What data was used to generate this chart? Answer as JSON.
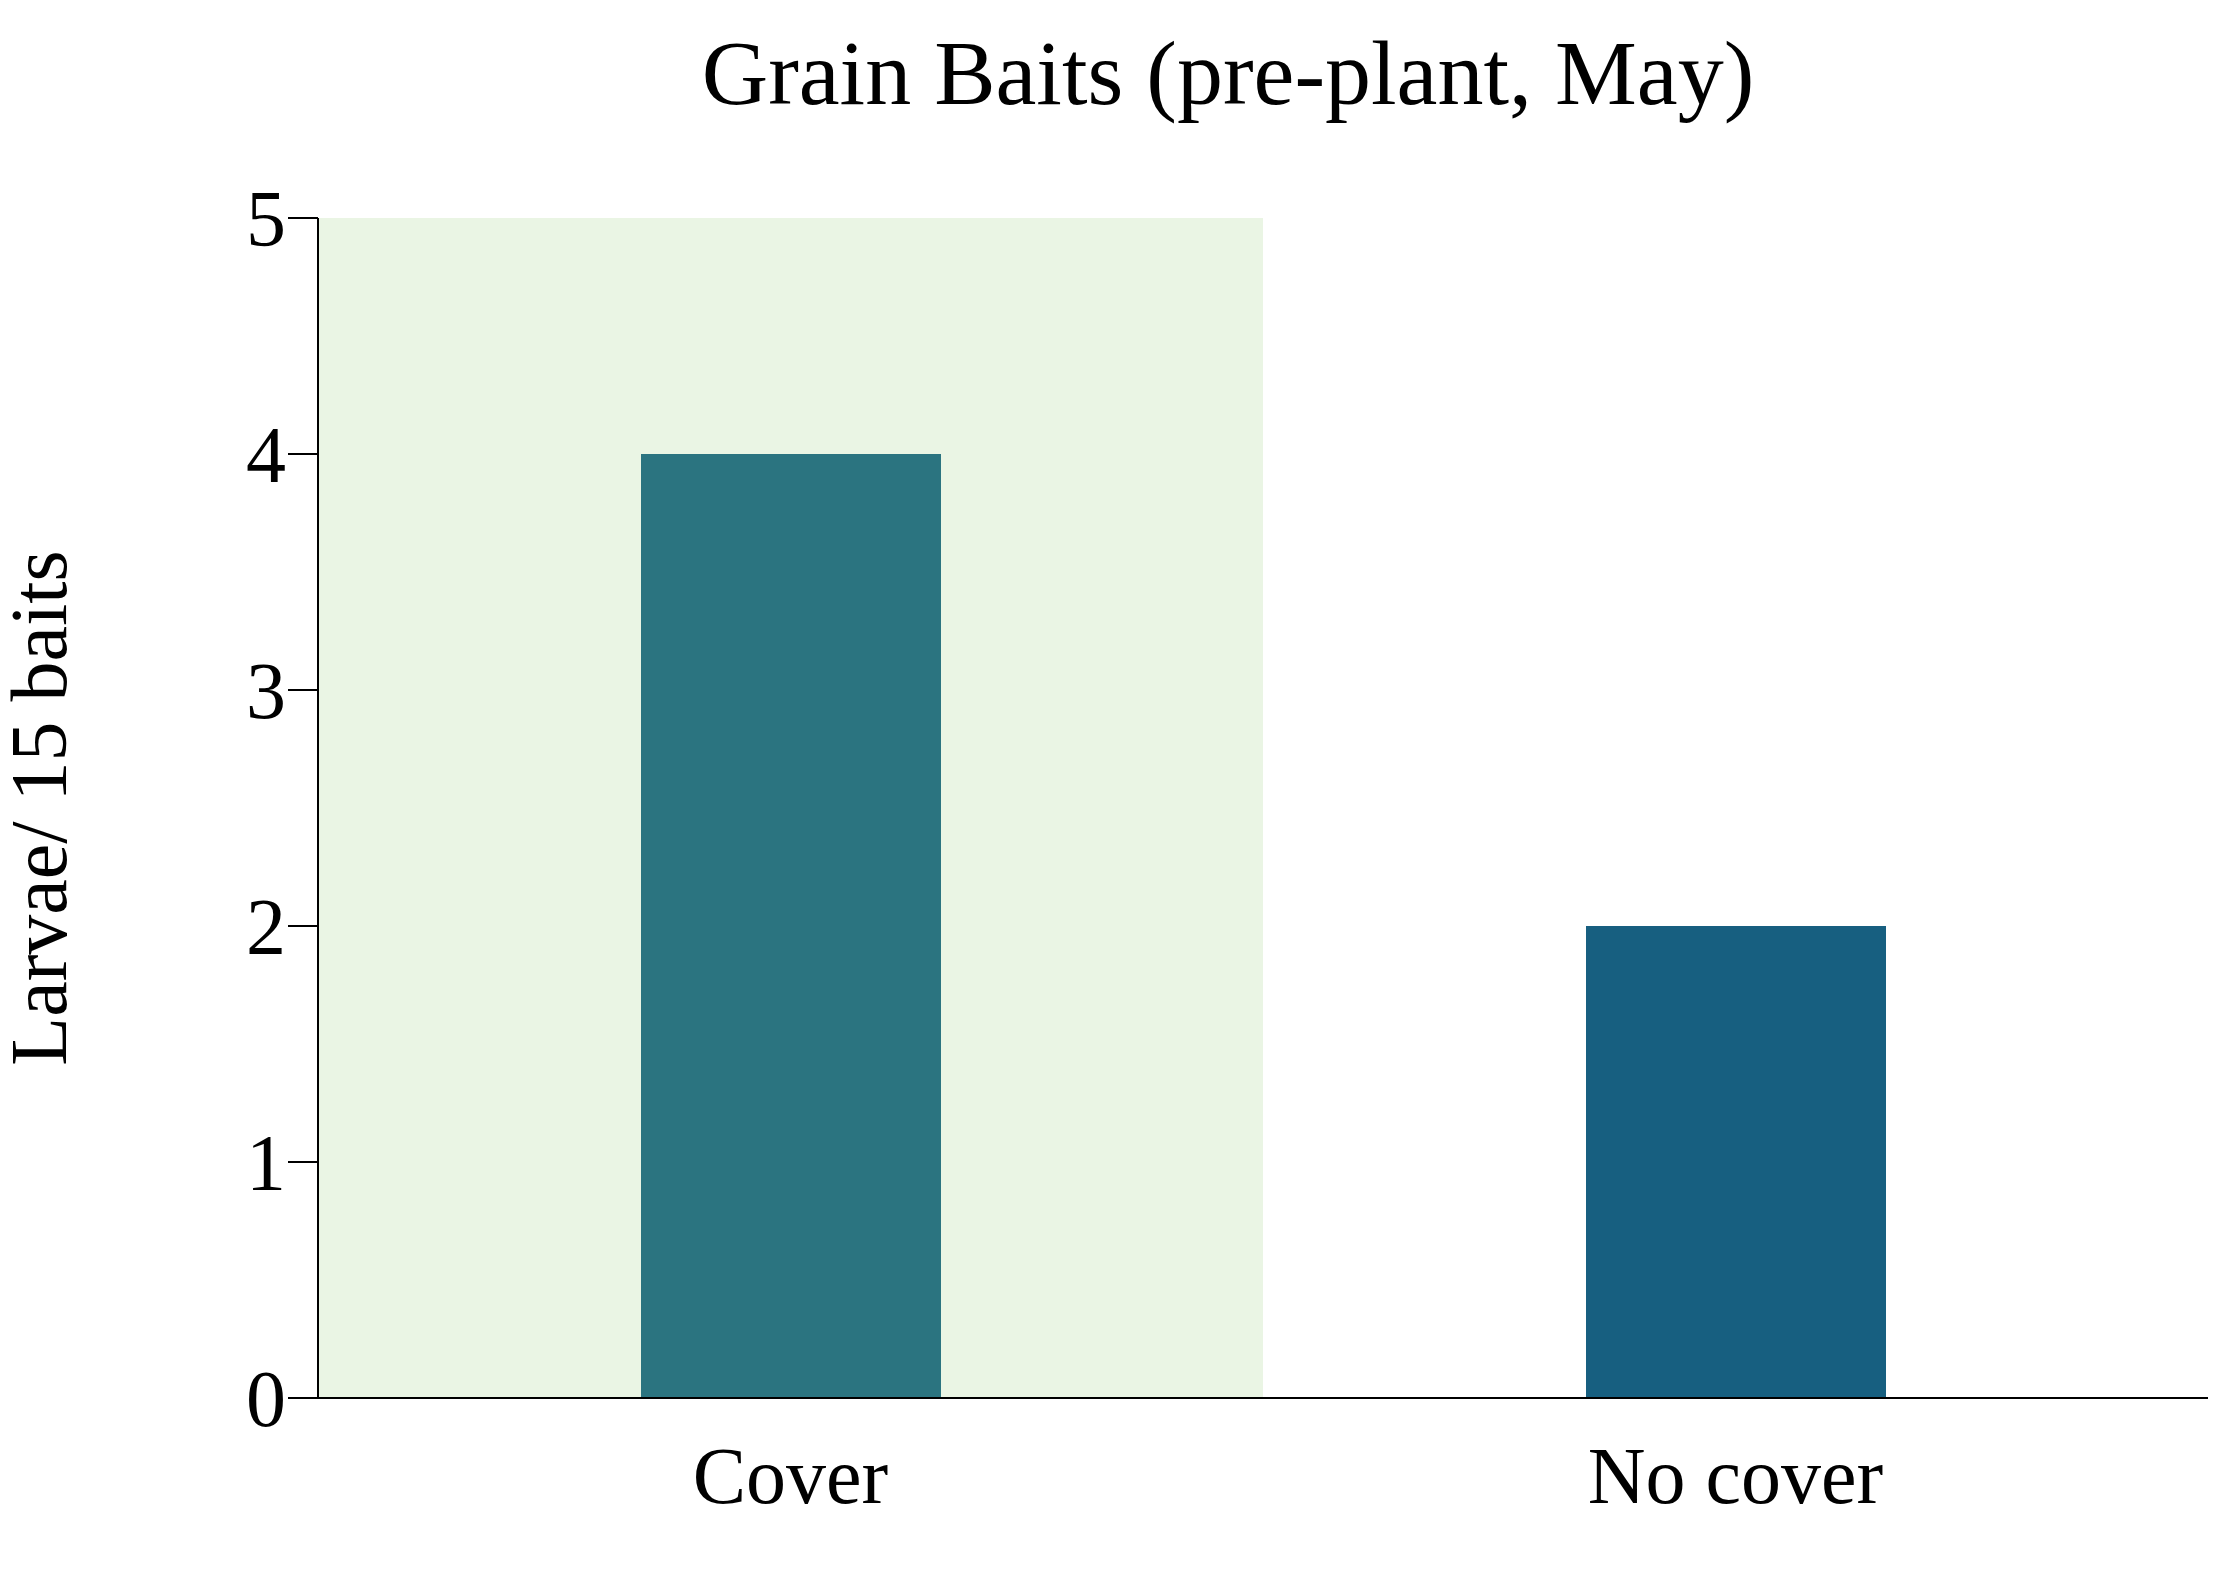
{
  "chart_data": {
    "type": "bar",
    "title": "Grain Baits (pre-plant, May)",
    "ylabel": "Larvae/ 15 baits",
    "categories": [
      "Cover",
      "No cover"
    ],
    "values": [
      4,
      2
    ],
    "colors": [
      "#2b7480",
      "#175f80"
    ],
    "ylim": [
      0,
      5
    ],
    "yticks": [
      0,
      1,
      2,
      3,
      4,
      5
    ],
    "grid": false,
    "legend": false,
    "bands": [
      {
        "axis": "x",
        "from": "Cover",
        "to": "Cover",
        "color": "#eaf5e4"
      }
    ]
  }
}
